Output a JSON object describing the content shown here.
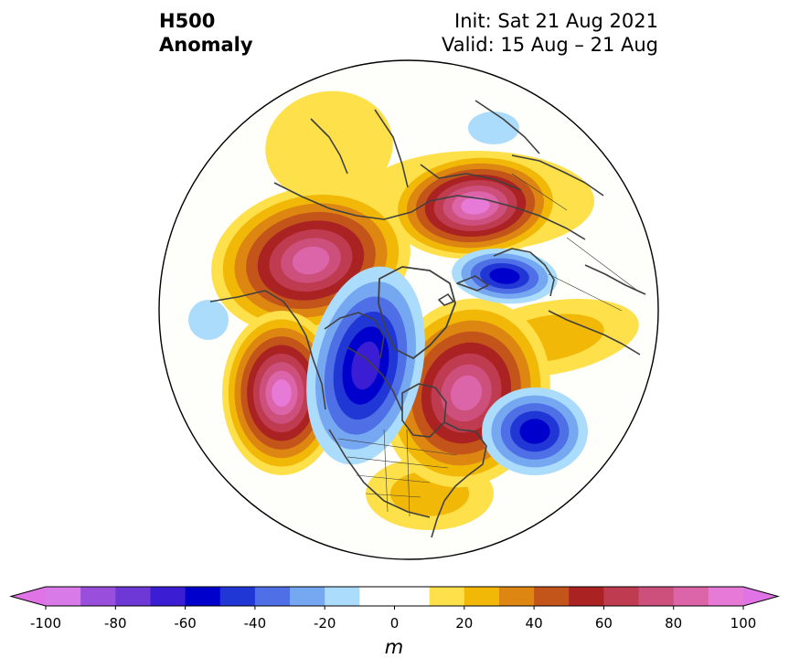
{
  "title": {
    "left_line1": "H500",
    "left_line2": "Anomaly",
    "right_line1": "Init: Sat 21 Aug 2021",
    "right_line2": "Valid: 15 Aug – 21 Aug"
  },
  "colorbar": {
    "unit": "m",
    "ticks": [
      "-100",
      "-80",
      "-60",
      "-40",
      "-20",
      "0",
      "20",
      "40",
      "60",
      "80",
      "100"
    ],
    "colors": [
      "#d87ae8",
      "#9a4fdc",
      "#6e38d6",
      "#3b1dd3",
      "#0000cc",
      "#2037d6",
      "#4f6fe6",
      "#76a8f2",
      "#acdcfb",
      "#ffffff",
      "#ffffff",
      "#fee04a",
      "#f2b807",
      "#dd8712",
      "#c4551a",
      "#aa2222",
      "#bf3b50",
      "#cc4f7c",
      "#dc65aa",
      "#e67ad6"
    ],
    "under_color": "#e074e6",
    "over_color": "#e074e6"
  },
  "anomaly_colors": {
    "pos1": "#fee04a",
    "pos2": "#f2b807",
    "pos3": "#dd8712",
    "pos4": "#c4551a",
    "pos5": "#aa2222",
    "pos6": "#bf3b50",
    "pos7": "#cc4f7c",
    "pos8": "#dc65aa",
    "pos9": "#e67ad6",
    "neg1": "#acdcfb",
    "neg2": "#76a8f2",
    "neg3": "#4f6fe6",
    "neg4": "#2037d6",
    "neg5": "#0000cc",
    "neg6": "#3b1dd3"
  }
}
